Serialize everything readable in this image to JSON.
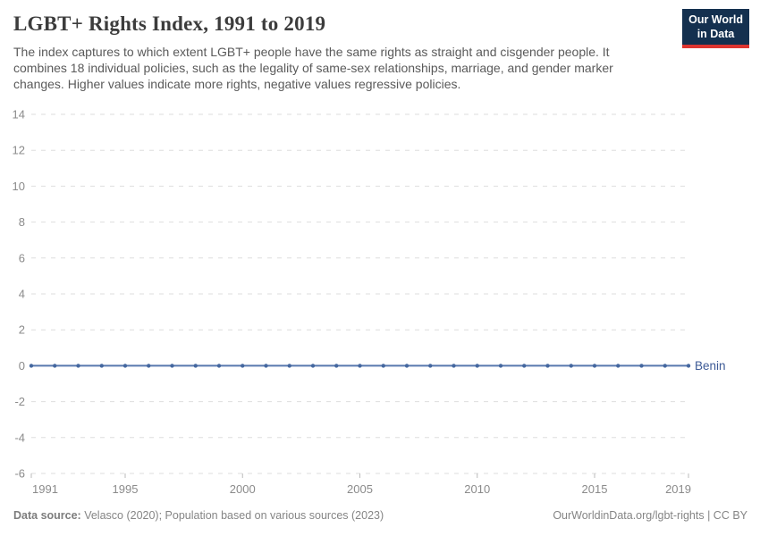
{
  "header": {
    "title": "LGBT+ Rights Index, 1991 to 2019",
    "subtitle": "The index captures to which extent LGBT+ people have the same rights as straight and cisgender people. It combines 18 individual policies, such as the legality of same-sex relationships, marriage, and gender marker changes. Higher values indicate more rights, negative values regressive policies."
  },
  "logo": {
    "line1": "Our World",
    "line2": "in Data",
    "background": "#14304f",
    "stripe": "#dd3530"
  },
  "chart_data": {
    "type": "line",
    "title": "LGBT+ Rights Index, 1991 to 2019",
    "xlabel": "",
    "ylabel": "",
    "xlim": [
      1991,
      2019
    ],
    "ylim": [
      -6,
      14
    ],
    "x_ticks": [
      1991,
      1995,
      2000,
      2005,
      2010,
      2015,
      2019
    ],
    "y_ticks": [
      14,
      12,
      10,
      8,
      6,
      4,
      2,
      0,
      -2,
      -4,
      -6
    ],
    "grid": "dashed-horizontal",
    "legend_position": "end-of-line-label",
    "colors": {
      "gridline": "#dedede",
      "zero_line": "#c8c8c8",
      "axis_tick": "#bbbbbb"
    },
    "series": [
      {
        "name": "Benin",
        "color": "#5878ae",
        "marker_color": "#44679f",
        "label_color": "#3d5a96",
        "x": [
          1991,
          1992,
          1993,
          1994,
          1995,
          1996,
          1997,
          1998,
          1999,
          2000,
          2001,
          2002,
          2003,
          2004,
          2005,
          2006,
          2007,
          2008,
          2009,
          2010,
          2011,
          2012,
          2013,
          2014,
          2015,
          2016,
          2017,
          2018,
          2019
        ],
        "values": [
          0,
          0,
          0,
          0,
          0,
          0,
          0,
          0,
          0,
          0,
          0,
          0,
          0,
          0,
          0,
          0,
          0,
          0,
          0,
          0,
          0,
          0,
          0,
          0,
          0,
          0,
          0,
          0,
          0
        ]
      }
    ]
  },
  "footer": {
    "datasource_label": "Data source:",
    "datasource_text": " Velasco (2020); Population based on various sources (2023)",
    "right_text": "OurWorldinData.org/lgbt-rights | CC BY"
  }
}
